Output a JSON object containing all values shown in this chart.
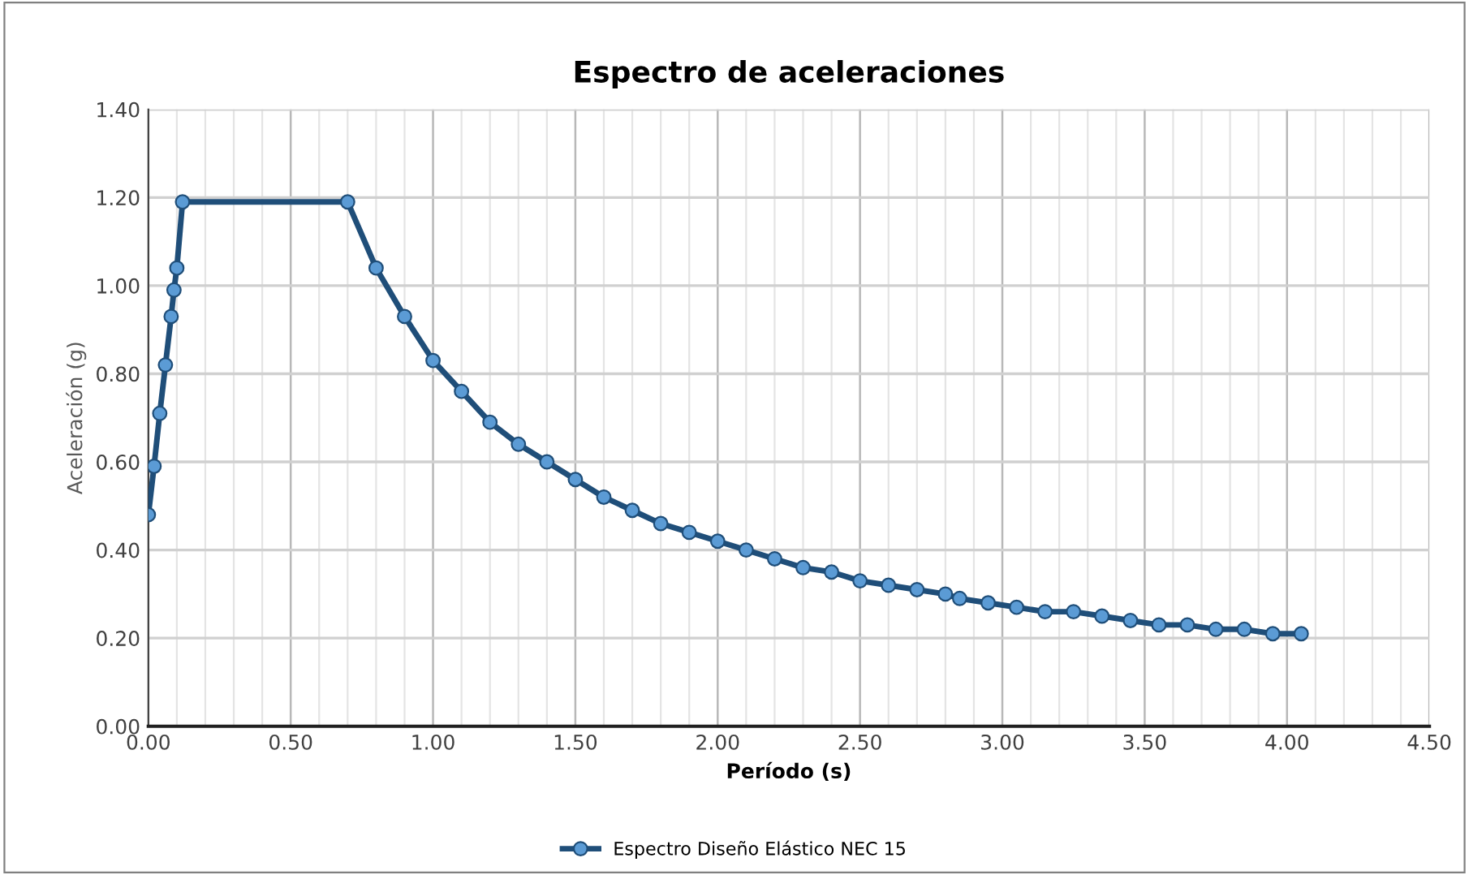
{
  "chart_data": {
    "type": "line",
    "title": "Espectro de aceleraciones",
    "xlabel": "Período (s)",
    "ylabel": "Aceleración (g)",
    "xlim": [
      0,
      4.5
    ],
    "xticks": [
      {
        "value": 0,
        "label": "0.00"
      },
      {
        "value": 0.5,
        "label": "0.50"
      },
      {
        "value": 1,
        "label": "1.00"
      },
      {
        "value": 1.5,
        "label": "1.50"
      },
      {
        "value": 2,
        "label": "2.00"
      },
      {
        "value": 2.5,
        "label": "2.50"
      },
      {
        "value": 3,
        "label": "3.00"
      },
      {
        "value": 3.5,
        "label": "3.50"
      },
      {
        "value": 4,
        "label": "4.00"
      },
      {
        "value": 4.5,
        "label": "4.50"
      }
    ],
    "ylim": [
      0,
      1.4
    ],
    "yticks": [
      {
        "value": 0,
        "label": "0.00"
      },
      {
        "value": 0.2,
        "label": "0.20"
      },
      {
        "value": 0.4,
        "label": "0.40"
      },
      {
        "value": 0.6,
        "label": "0.60"
      },
      {
        "value": 0.8,
        "label": "0.80"
      },
      {
        "value": 1.0,
        "label": "1.00"
      },
      {
        "value": 1.2,
        "label": "1.20"
      },
      {
        "value": 1.4,
        "label": "1.40"
      }
    ],
    "grid": true,
    "legend": "bottom",
    "marker": "circle",
    "line_style": "solid",
    "series": [
      {
        "name": "Espectro Diseño Elástico NEC 15",
        "color": "#1f4e79",
        "x": [
          0,
          0.02,
          0.04,
          0.06,
          0.08,
          0.09,
          0.1,
          0.12,
          0.7,
          0.8,
          0.9,
          1.0,
          1.1,
          1.2,
          1.3,
          1.4,
          1.5,
          1.6,
          1.7,
          1.8,
          1.9,
          2.0,
          2.1,
          2.2,
          2.3,
          2.4,
          2.5,
          2.6,
          2.7,
          2.8,
          2.85,
          2.95,
          3.05,
          3.15,
          3.25,
          3.35,
          3.45,
          3.55,
          3.65,
          3.75,
          3.85,
          3.95,
          4.05
        ],
        "values": [
          0.48,
          0.59,
          0.71,
          0.82,
          0.93,
          0.99,
          1.04,
          1.19,
          1.19,
          1.04,
          0.93,
          0.83,
          0.76,
          0.69,
          0.64,
          0.6,
          0.56,
          0.52,
          0.49,
          0.46,
          0.44,
          0.42,
          0.4,
          0.38,
          0.36,
          0.35,
          0.33,
          0.32,
          0.31,
          0.3,
          0.29,
          0.28,
          0.27,
          0.26,
          0.26,
          0.25,
          0.24,
          0.23,
          0.23,
          0.22,
          0.22,
          0.21,
          0.21
        ]
      }
    ]
  }
}
